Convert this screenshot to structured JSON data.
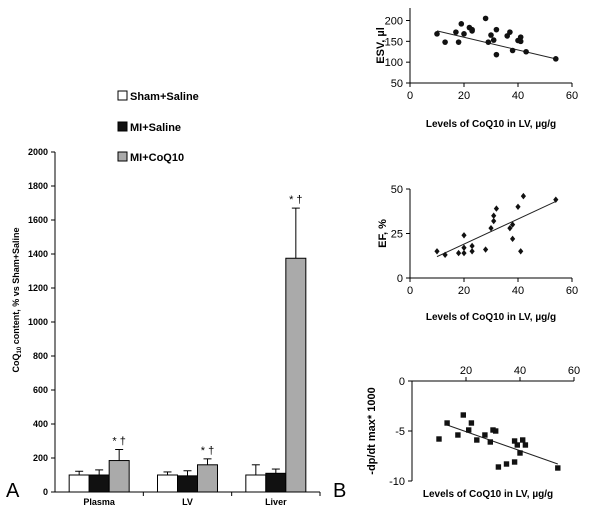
{
  "panel_labels": {
    "a": "A",
    "b": "B"
  },
  "chart_data": [
    {
      "id": "panelA",
      "type": "bar",
      "ylabel_main": "CoQ",
      "ylabel_sub": "10",
      "ylabel_rest": " content, % vs Sham+Saline",
      "ylim": [
        0,
        2000
      ],
      "yticks": [
        0,
        200,
        400,
        600,
        800,
        1000,
        1200,
        1400,
        1600,
        1800,
        2000
      ],
      "categories": [
        "Plasma",
        "LV",
        "Liver"
      ],
      "legend_placement": "top-left",
      "series": [
        {
          "name": "Sham+Saline",
          "color": "#ffffff",
          "values": [
            100,
            100,
            100
          ],
          "errors": [
            22,
            18,
            60
          ],
          "annotations": [
            "",
            "",
            ""
          ]
        },
        {
          "name": "MI+Saline",
          "color": "#111111",
          "values": [
            100,
            95,
            110
          ],
          "errors": [
            30,
            30,
            25
          ],
          "annotations": [
            "",
            "",
            ""
          ]
        },
        {
          "name": "MI+CoQ10",
          "color": "#aaaaaa",
          "values": [
            185,
            160,
            1375
          ],
          "errors": [
            65,
            35,
            295
          ],
          "annotations": [
            "* †",
            "* †",
            "* †"
          ]
        }
      ]
    },
    {
      "id": "esv",
      "type": "scatter",
      "marker": "circle",
      "ylabel": "ESV, µl",
      "xlabel": "Levels of CoQ10 in LV, µg/g",
      "xlim": [
        0,
        60
      ],
      "ylim": [
        50,
        230
      ],
      "xticks": [
        0,
        20,
        40,
        60
      ],
      "yticks": [
        50,
        100,
        150,
        200
      ],
      "x": [
        10,
        13,
        17,
        18,
        19,
        20,
        22,
        23,
        23,
        28,
        29,
        30,
        31,
        32,
        32,
        36,
        37,
        38,
        40,
        41,
        41,
        43,
        54
      ],
      "y": [
        168,
        148,
        172,
        148,
        192,
        168,
        183,
        175,
        178,
        205,
        148,
        165,
        153,
        178,
        118,
        163,
        172,
        128,
        152,
        150,
        160,
        125,
        108
      ],
      "trend": [
        [
          10,
          175
        ],
        [
          54,
          108
        ]
      ]
    },
    {
      "id": "ef",
      "type": "scatter",
      "marker": "diamond",
      "ylabel": "EF, %",
      "xlabel": "Levels of CoQ10 in LV, µg/g",
      "xlim": [
        0,
        60
      ],
      "ylim": [
        0,
        50
      ],
      "xticks": [
        0,
        20,
        40,
        60
      ],
      "yticks": [
        0,
        25,
        50
      ],
      "x": [
        10,
        13,
        18,
        20,
        20,
        20,
        23,
        23,
        28,
        30,
        31,
        31,
        32,
        37,
        38,
        38,
        40,
        41,
        42,
        54
      ],
      "y": [
        15,
        13,
        14,
        17,
        24,
        14,
        18,
        15,
        16,
        28,
        32,
        35,
        39,
        28,
        22,
        30,
        40,
        15,
        46,
        44
      ],
      "trend": [
        [
          10,
          12
        ],
        [
          54,
          43
        ]
      ]
    },
    {
      "id": "dpdt",
      "type": "scatter",
      "marker": "square",
      "ylabel": "-dp/dt max* 1000",
      "xlabel": "Levels of CoQ10 in LV, µg/g",
      "xlim": [
        0,
        60
      ],
      "ylim": [
        -10,
        0
      ],
      "xticks": [
        20,
        40,
        60
      ],
      "yticks": [
        0,
        -5,
        -10
      ],
      "xaxis_at_top": true,
      "x": [
        10,
        13,
        17,
        19,
        21,
        22,
        24,
        27,
        29,
        30,
        31,
        32,
        35,
        38,
        38,
        39,
        40,
        41,
        42,
        54
      ],
      "y": [
        -5.8,
        -4.2,
        -5.4,
        -3.4,
        -4.9,
        -4.2,
        -5.9,
        -5.4,
        -6.1,
        -4.9,
        -5.0,
        -8.6,
        -8.3,
        -6.0,
        -8.1,
        -6.4,
        -7.2,
        -5.9,
        -6.4,
        -8.7
      ],
      "trend": [
        [
          13,
          -4.4
        ],
        [
          54,
          -8.3
        ]
      ]
    }
  ]
}
